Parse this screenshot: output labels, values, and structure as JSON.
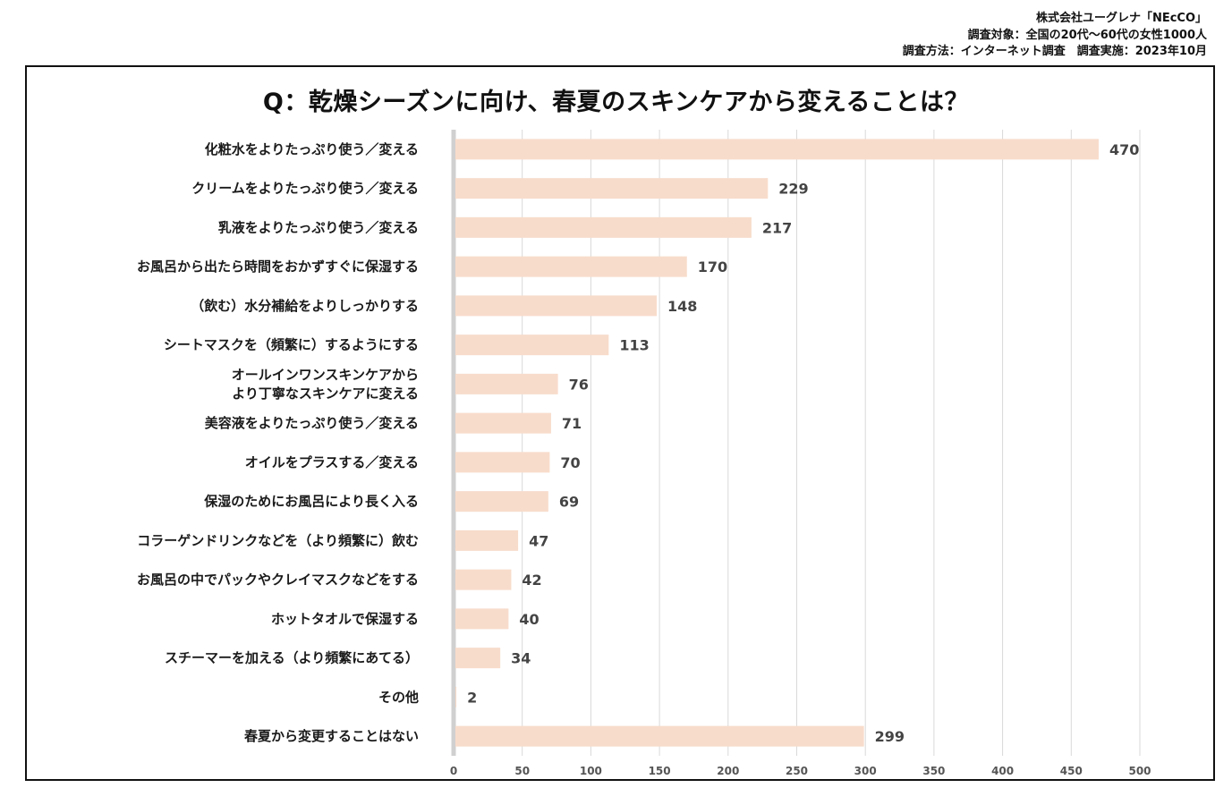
{
  "source": {
    "company": "株式会社ユーグレナ「NEcCO」",
    "target": "調査対象：全国の20代～60代の女性1000人",
    "method": "調査方法：インターネット調査　調査実施：2023年10月"
  },
  "chart_data": {
    "type": "bar",
    "orientation": "horizontal",
    "title": "Q：乾燥シーズンに向け、春夏のスキンケアから変えることは？",
    "categories": [
      [
        "化粧水をよりたっぷり使う／変える"
      ],
      [
        "クリームをよりたっぷり使う／変える"
      ],
      [
        "乳液をよりたっぷり使う／変える"
      ],
      [
        "お風呂から出たら時間をおかずすぐに保湿する"
      ],
      [
        "（飲む）水分補給をよりしっかりする"
      ],
      [
        "シートマスクを（頻繁に）するようにする"
      ],
      [
        "オールインワンスキンケアから",
        "より丁寧なスキンケアに変える"
      ],
      [
        "美容液をよりたっぷり使う／変える"
      ],
      [
        "オイルをプラスする／変える"
      ],
      [
        "保湿のためにお風呂により長く入る"
      ],
      [
        "コラーゲンドリンクなどを（より頻繁に）飲む"
      ],
      [
        "お風呂の中でパックやクレイマスクなどをする"
      ],
      [
        "ホットタオルで保湿する"
      ],
      [
        "スチーマーを加える（より頻繁にあてる）"
      ],
      [
        "その他"
      ],
      [
        "春夏から変更することはない"
      ]
    ],
    "values": [
      470,
      229,
      217,
      170,
      148,
      113,
      76,
      71,
      70,
      69,
      47,
      42,
      40,
      34,
      2,
      299
    ],
    "xlim": [
      0,
      500
    ],
    "xticks": [
      0,
      50,
      100,
      150,
      200,
      250,
      300,
      350,
      400,
      450,
      500
    ],
    "grid": true,
    "bar_color": "#f8dccb",
    "axis_color": "#d0d0d0",
    "grid_color": "#d9d9d9"
  }
}
